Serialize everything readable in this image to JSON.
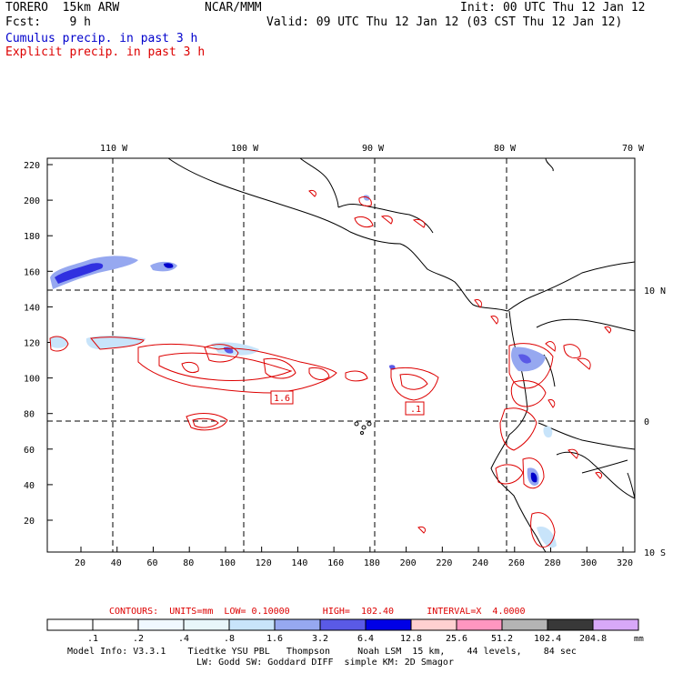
{
  "header": {
    "model": "TORERO  15km ARW",
    "org": "NCAR/MMM",
    "init": "Init: 00 UTC Thu 12 Jan 12",
    "fcst": "Fcst:    9 h",
    "valid": "Valid: 09 UTC Thu 12 Jan 12 (03 CST Thu 12 Jan 12)",
    "field1": "Cumulus precip. in past 3 h",
    "field2": "Explicit precip. in past 3 h"
  },
  "colors": {
    "field1": "#0000cc",
    "field2": "#dd0000",
    "contour": "#dd0000",
    "coast": "#000000"
  },
  "map": {
    "lon_labels": [
      "110 W",
      "100 W",
      "90 W",
      "80 W",
      "70 W"
    ],
    "lat_labels": [
      "10 N",
      "0",
      "10 S"
    ],
    "x_ticks": [
      "20",
      "40",
      "60",
      "80",
      "100",
      "120",
      "140",
      "160",
      "180",
      "200",
      "220",
      "240",
      "260",
      "280",
      "300",
      "320"
    ],
    "y_ticks": [
      "20",
      "40",
      "60",
      "80",
      "100",
      "120",
      "140",
      "160",
      "180",
      "200",
      "220"
    ],
    "labels": [
      "1.6",
      ".1"
    ]
  },
  "contours_line": "CONTOURS:  UNITS=mm  LOW= 0.10000      HIGH=  102.40      INTERVAL=X  4.0000",
  "colorbar": {
    "values": [
      ".1",
      ".2",
      ".4",
      ".8",
      "1.6",
      "3.2",
      "6.4",
      "12.8",
      "25.6",
      "51.2",
      "102.4",
      "204.8"
    ],
    "colors": [
      "#ffffff",
      "#ffffff",
      "#f0f8ff",
      "#e8f6fa",
      "#c8e4fa",
      "#96a8f0",
      "#5a5ae6",
      "#0000e6",
      "#ffd0d0",
      "#ff96c0",
      "#b4b4b4",
      "#383838",
      "#d8a8f8"
    ],
    "unit": "mm"
  },
  "model_info": {
    "line1": "Model Info: V3.3.1    Tiedtke YSU PBL   Thompson     Noah LSM  15 km,    44 levels,    84 sec",
    "line2": "LW: Godd SW: Goddard DIFF  simple KM: 2D Smagor"
  }
}
